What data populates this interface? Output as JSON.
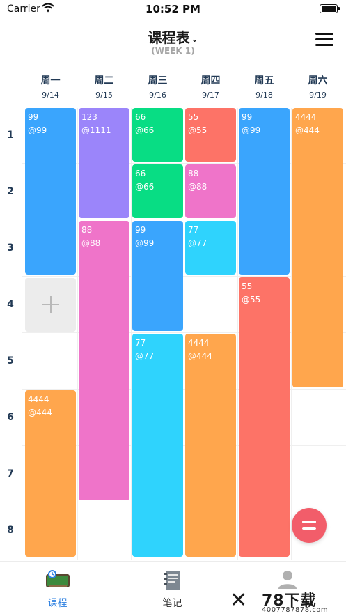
{
  "status_bar": {
    "carrier": "Carrier",
    "time": "10:52 PM"
  },
  "nav": {
    "title": "课程表",
    "subtitle": "(WEEK 1)"
  },
  "days": [
    {
      "name": "周一",
      "date": "9/14"
    },
    {
      "name": "周二",
      "date": "9/15"
    },
    {
      "name": "周三",
      "date": "9/16"
    },
    {
      "name": "周四",
      "date": "9/17"
    },
    {
      "name": "周五",
      "date": "9/18"
    },
    {
      "name": "周六",
      "date": "9/19"
    }
  ],
  "slots": [
    "1",
    "2",
    "3",
    "4",
    "5",
    "6",
    "7",
    "8"
  ],
  "courses": [
    {
      "day": 0,
      "start": 1,
      "span": 3,
      "name": "99",
      "room": "@99",
      "color": "#3aa5fd"
    },
    {
      "day": 0,
      "start": 6,
      "span": 3,
      "name": "4444",
      "room": "@444",
      "color": "#ffa64d"
    },
    {
      "day": 1,
      "start": 1,
      "span": 2,
      "name": "123",
      "room": "@1111",
      "color": "#9b85fa"
    },
    {
      "day": 1,
      "start": 3,
      "span": 5,
      "name": "88",
      "room": "@88",
      "color": "#ef74c9"
    },
    {
      "day": 2,
      "start": 1,
      "span": 1,
      "name": "66",
      "room": "@66",
      "color": "#08dd84"
    },
    {
      "day": 2,
      "start": 2,
      "span": 1,
      "name": "66",
      "room": "@66",
      "color": "#08dd84"
    },
    {
      "day": 2,
      "start": 3,
      "span": 2,
      "name": "99",
      "room": "@99",
      "color": "#3aa5fd"
    },
    {
      "day": 2,
      "start": 5,
      "span": 4,
      "name": "77",
      "room": "@77",
      "color": "#2fd3fd"
    },
    {
      "day": 3,
      "start": 1,
      "span": 1,
      "name": "55",
      "room": "@55",
      "color": "#fd7367"
    },
    {
      "day": 3,
      "start": 2,
      "span": 1,
      "name": "88",
      "room": "@88",
      "color": "#ef74c9"
    },
    {
      "day": 3,
      "start": 3,
      "span": 1,
      "name": "77",
      "room": "@77",
      "color": "#2fd3fd"
    },
    {
      "day": 3,
      "start": 5,
      "span": 4,
      "name": "4444",
      "room": "@444",
      "color": "#ffa64d"
    },
    {
      "day": 4,
      "start": 1,
      "span": 3,
      "name": "99",
      "room": "@99",
      "color": "#3aa5fd"
    },
    {
      "day": 4,
      "start": 4,
      "span": 5,
      "name": "55",
      "room": "@55",
      "color": "#fd7367"
    },
    {
      "day": 5,
      "start": 1,
      "span": 5,
      "name": "4444",
      "room": "@444",
      "color": "#ffa64d"
    }
  ],
  "add_cell": {
    "day": 0,
    "slot": 4,
    "icon": "plus-icon"
  },
  "fab": {
    "icon": "equals-icon",
    "color": "#f25d6a"
  },
  "tabs": [
    {
      "label": "课程",
      "icon": "blackboard-icon",
      "active": true,
      "color": "#2b7fe0"
    },
    {
      "label": "笔记",
      "icon": "notebook-icon",
      "active": false,
      "color": "#333333"
    },
    {
      "label": "",
      "icon": "user-icon",
      "active": false,
      "color": "#333333"
    }
  ],
  "watermark": {
    "title": "78下载",
    "url": "4007787878.com"
  }
}
